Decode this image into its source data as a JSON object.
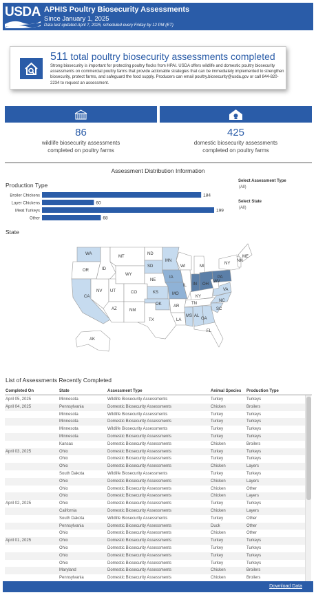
{
  "header": {
    "logo": "USDA",
    "title": "APHIS Poultry Biosecurity Assessments",
    "subtitle": "Since January 1, 2025",
    "updated": "Data last updated April 7, 2025, scheduled every Friday by 12 PM (ET)"
  },
  "summary": {
    "total": "511",
    "total_label": "total poultry biosecurity assessments completed",
    "body": "Strong biosecurity is important for protecting poultry flocks from HPAI. USDA offers wildlife and domestic poultry biosecurity assessments on commercial poultry farms that provide actionable strategies that can be immediately implemented to strengthen biosecurity, protect farms, and safeguard the food supply. Producers can email poultry.biosecurity@usda.gov or call 844-820-2234 to request an assessment."
  },
  "stats": {
    "wildlife_value": "86",
    "wildlife_label": "wildlife biosecurity assessments completed on poultry farms",
    "domestic_value": "425",
    "domestic_label": "domestic biosecurity assessments completed on poultry farms"
  },
  "sections": {
    "distribution": "Assessment Distribution Information",
    "production": "Production Type",
    "state": "State",
    "list": "List of Assessments Recently Completed"
  },
  "filters": {
    "type_label": "Select Assessment Type",
    "type_value": "(All)",
    "state_label": "Select State",
    "state_value": "(All)"
  },
  "chart_data": {
    "type": "bar",
    "orientation": "horizontal",
    "categories": [
      "Broiler Chickens",
      "Layer Chickens",
      "Meat Turkeys",
      "Other"
    ],
    "values": [
      184,
      60,
      199,
      68
    ],
    "title": "Production Type",
    "xlabel": "",
    "ylabel": "",
    "xlim": [
      0,
      199
    ],
    "grid": false,
    "bar_color": "#2a5ca8"
  },
  "map": {
    "labels": [
      "WA",
      "OR",
      "CA",
      "NV",
      "ID",
      "MT",
      "WY",
      "UT",
      "AZ",
      "CO",
      "NM",
      "ND",
      "SD",
      "NE",
      "KS",
      "OK",
      "TX",
      "MN",
      "IA",
      "MO",
      "AR",
      "LA",
      "WI",
      "IL",
      "MI",
      "IN",
      "OH",
      "KY",
      "TN",
      "MS",
      "AL",
      "GA",
      "FL",
      "SC",
      "NC",
      "VA",
      "WV",
      "PA",
      "NY",
      "ME",
      "NH",
      "AK"
    ],
    "colors": {
      "none": "#ffffff",
      "low": "#c6dbef",
      "mid": "#8fb2d6",
      "high": "#5b7fa8"
    }
  },
  "table": {
    "headers": [
      "Completed On",
      "State",
      "Assessment Type",
      "Animal Species",
      "Production Type"
    ],
    "rows": [
      [
        "April 05, 2025",
        "Minnesota",
        "Wildlife Biosecurity Assessments",
        "Turkey",
        "Turkeys"
      ],
      [
        "April 04, 2025",
        "Pennsylvania",
        "Domestic Biosecurity Assessments",
        "Chicken",
        "Broilers"
      ],
      [
        "",
        "Minnesota",
        "Wildlife Biosecurity Assessments",
        "Turkey",
        "Turkeys"
      ],
      [
        "",
        "Minnesota",
        "Domestic Biosecurity Assessments",
        "Turkey",
        "Turkeys"
      ],
      [
        "",
        "Minnesota",
        "Wildlife Biosecurity Assessments",
        "Turkey",
        "Turkeys"
      ],
      [
        "",
        "Minnesota",
        "Domestic Biosecurity Assessments",
        "Turkey",
        "Turkeys"
      ],
      [
        "",
        "Kansas",
        "Domestic Biosecurity Assessments",
        "Chicken",
        "Broilers"
      ],
      [
        "April 03, 2025",
        "Ohio",
        "Domestic Biosecurity Assessments",
        "Turkey",
        "Turkeys"
      ],
      [
        "",
        "Ohio",
        "Domestic Biosecurity Assessments",
        "Turkey",
        "Turkeys"
      ],
      [
        "",
        "Ohio",
        "Domestic Biosecurity Assessments",
        "Chicken",
        "Layers"
      ],
      [
        "",
        "South Dakota",
        "Wildlife Biosecurity Assessments",
        "Turkey",
        "Turkeys"
      ],
      [
        "",
        "Ohio",
        "Domestic Biosecurity Assessments",
        "Chicken",
        "Layers"
      ],
      [
        "",
        "Ohio",
        "Domestic Biosecurity Assessments",
        "Chicken",
        "Other"
      ],
      [
        "",
        "Ohio",
        "Domestic Biosecurity Assessments",
        "Chicken",
        "Layers"
      ],
      [
        "April 02, 2025",
        "Ohio",
        "Domestic Biosecurity Assessments",
        "Turkey",
        "Turkeys"
      ],
      [
        "",
        "California",
        "Domestic Biosecurity Assessments",
        "Chicken",
        "Layers"
      ],
      [
        "",
        "South Dakota",
        "Wildlife Biosecurity Assessments",
        "Turkey",
        "Other"
      ],
      [
        "",
        "Pennsylvania",
        "Domestic Biosecurity Assessments",
        "Duck",
        "Other"
      ],
      [
        "",
        "Ohio",
        "Domestic Biosecurity Assessments",
        "Chicken",
        "Other"
      ],
      [
        "April 01, 2025",
        "Ohio",
        "Domestic Biosecurity Assessments",
        "Turkey",
        "Turkeys"
      ],
      [
        "",
        "Ohio",
        "Domestic Biosecurity Assessments",
        "Turkey",
        "Turkeys"
      ],
      [
        "",
        "Ohio",
        "Domestic Biosecurity Assessments",
        "Turkey",
        "Turkeys"
      ],
      [
        "",
        "Ohio",
        "Domestic Biosecurity Assessments",
        "Turkey",
        "Turkeys"
      ],
      [
        "",
        "Maryland",
        "Domestic Biosecurity Assessments",
        "Chicken",
        "Broilers"
      ],
      [
        "",
        "Pennsylvania",
        "Domestic Biosecurity Assessments",
        "Chicken",
        "Broilers"
      ]
    ]
  },
  "footer": {
    "download": "Download Data"
  }
}
